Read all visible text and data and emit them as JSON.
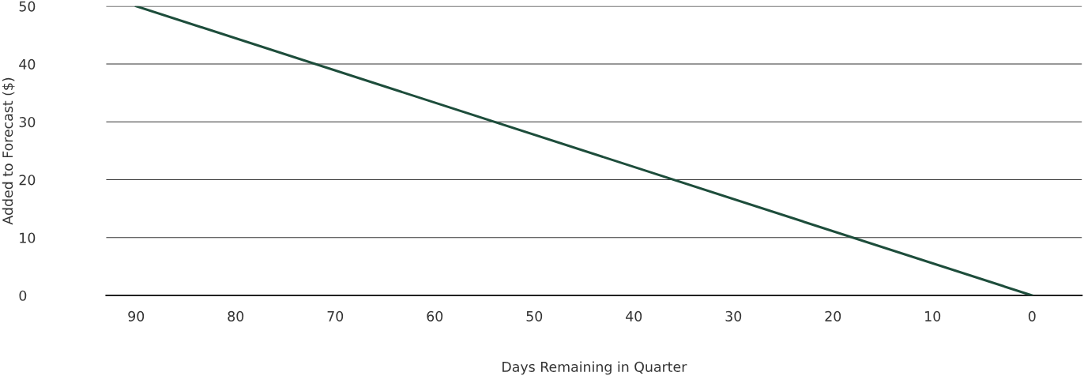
{
  "chart_data": {
    "type": "line",
    "xlabel": "Days Remaining in Quarter",
    "ylabel": "Added to Forecast ($)",
    "x": [
      90,
      0
    ],
    "series": [
      {
        "color": "#1d4d3b",
        "values": [
          50,
          0
        ]
      }
    ],
    "xlim": [
      93,
      -5
    ],
    "ylim": [
      0,
      50
    ],
    "xticks": [
      90,
      80,
      70,
      60,
      50,
      40,
      30,
      20,
      10,
      0
    ],
    "yticks": [
      0,
      10,
      20,
      30,
      40,
      50
    ],
    "grid": "y",
    "marker": "none",
    "line_style": "solid"
  }
}
